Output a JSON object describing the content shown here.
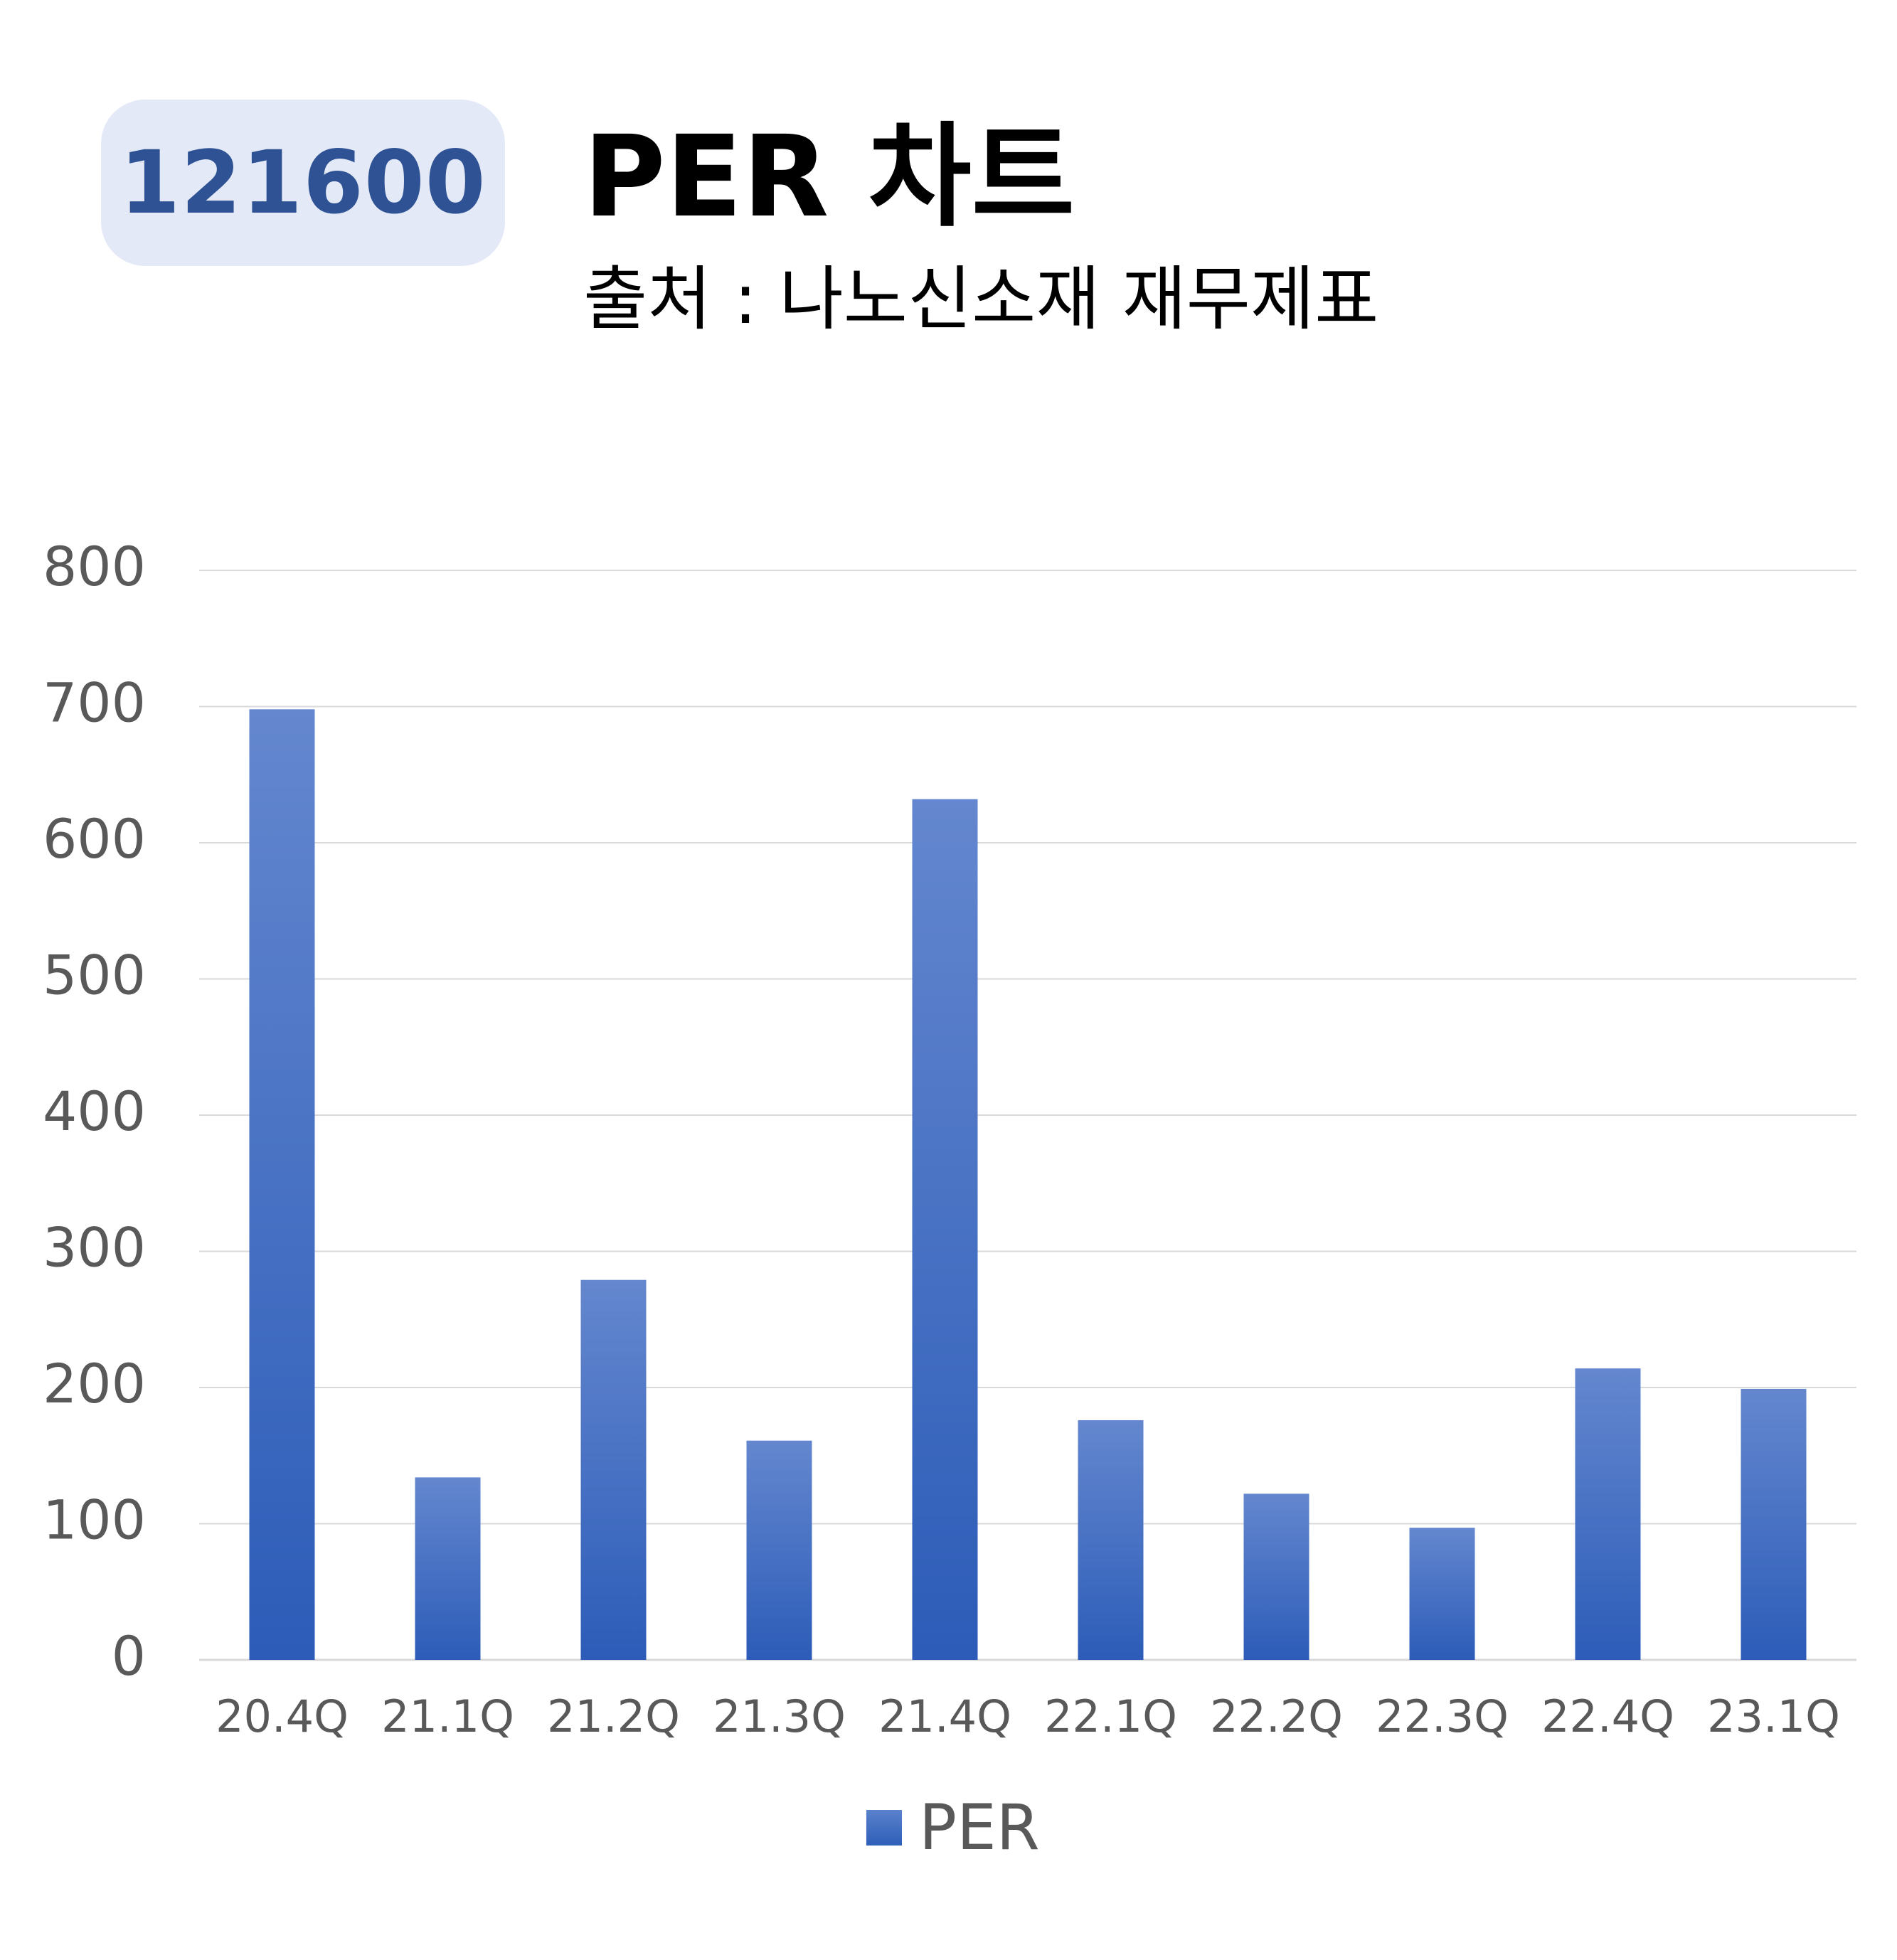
{
  "header": {
    "code_badge": "121600",
    "title": "PER 차트",
    "subtitle": "출처 : 나노신소재 재무제표"
  },
  "colors": {
    "bar_top": "#6487cf",
    "bar_bottom": "#2c5cb8",
    "badge_bg": "#e3e9f6",
    "badge_text": "#2e5294",
    "grid": "#d9d9d9",
    "tick_text": "#595959"
  },
  "chart_data": {
    "type": "bar",
    "categories": [
      "20.4Q",
      "21.1Q",
      "21.2Q",
      "21.3Q",
      "21.4Q",
      "22.1Q",
      "22.2Q",
      "22.3Q",
      "22.4Q",
      "23.1Q"
    ],
    "series": [
      {
        "name": "PER",
        "values": [
          698,
          134,
          279,
          161,
          632,
          176,
          122,
          97,
          214,
          199
        ]
      }
    ],
    "ylim": [
      0,
      800
    ],
    "yticks": [
      0,
      100,
      200,
      300,
      400,
      500,
      600,
      700,
      800
    ],
    "grid": true,
    "legend": "bottom"
  }
}
